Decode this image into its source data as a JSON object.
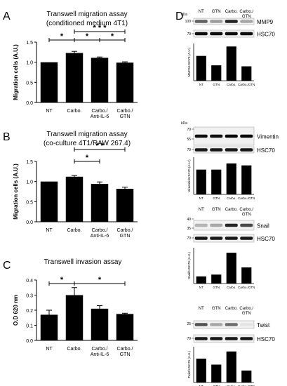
{
  "panels": {
    "A": {
      "letter": "A",
      "title1": "Transwell migration assay",
      "title2": "(conditioned medium 4T1)"
    },
    "B": {
      "letter": "B",
      "title1": "Transwell migration assay",
      "title2": "(co-culture 4T1/RAW 267.4)"
    },
    "C": {
      "letter": "C",
      "title1": "Transwell invasion assay"
    },
    "D": {
      "letter": "D"
    }
  },
  "significance": {
    "one": "*",
    "two": "* *",
    "three": "* * *"
  },
  "blots": {
    "col_labels": [
      "NT",
      "GTN",
      "Carbo.",
      "Carbo./\nGTN"
    ],
    "kda_unit": "kDa",
    "bands": {
      "mmp9": "MMP9",
      "hsc70": "HSC70",
      "vimentin": "Vimentin",
      "snail": "Snail",
      "twist": "Twist"
    },
    "markers": {
      "mmp9": [
        "100",
        "70"
      ],
      "vimentin": [
        "70",
        "55",
        "70"
      ],
      "snail": [
        "40",
        "35",
        "70"
      ],
      "twist": [
        "25",
        "70"
      ]
    },
    "small_cat_labels": [
      "NT",
      "GTN",
      "Carbo.",
      "Carbo./GTN"
    ]
  },
  "chart_data": [
    {
      "type": "bar",
      "panel": "A",
      "title": "Transwell migration assay (conditioned medium 4T1)",
      "categories": [
        "NT",
        "Carbo.",
        "Carbo./\nAnti-IL-6",
        "Carbo./\nGTN"
      ],
      "values": [
        1.0,
        1.23,
        1.11,
        0.99
      ],
      "errors": [
        0.0,
        0.04,
        0.02,
        0.02
      ],
      "ylabel": "Migration cells (A.U.)",
      "ylim": [
        0,
        1.5
      ],
      "yticks": [
        "0.0",
        "0.5",
        "1.0",
        "1.5"
      ],
      "significance": [
        {
          "from": 0,
          "to": 1,
          "label": "*"
        },
        {
          "from": 1,
          "to": 3,
          "label": "* * *"
        },
        {
          "from": 1,
          "to": 2,
          "label": "*"
        },
        {
          "from": 2,
          "to": 3,
          "label": "*"
        }
      ]
    },
    {
      "type": "bar",
      "panel": "B",
      "title": "Transwell migration assay (co-culture 4T1/RAW 267.4)",
      "categories": [
        "NT",
        "Carbo.",
        "Carbo./\nAnti-IL-6",
        "Carbo./\nGTN"
      ],
      "values": [
        1.0,
        1.12,
        0.94,
        0.82
      ],
      "errors": [
        0.0,
        0.03,
        0.05,
        0.04
      ],
      "ylabel": "Migration cells (A.U.)",
      "ylim": [
        0,
        1.5
      ],
      "yticks": [
        "0.0",
        "0.5",
        "1.0",
        "1.5"
      ],
      "significance": [
        {
          "from": 1,
          "to": 3,
          "label": "* *"
        },
        {
          "from": 1,
          "to": 2,
          "label": "*"
        }
      ]
    },
    {
      "type": "bar",
      "panel": "C",
      "title": "Transwell invasion assay",
      "categories": [
        "NT",
        "Carbo.",
        "Carbo./\nAnti-IL-6",
        "Carbo./\nGTN"
      ],
      "values": [
        0.17,
        0.3,
        0.21,
        0.175
      ],
      "errors": [
        0.03,
        0.05,
        0.02,
        0.005
      ],
      "ylabel": "O.D 620 nm",
      "ylim": [
        0,
        0.4
      ],
      "yticks": [
        "0.0",
        "0.1",
        "0.2",
        "0.3",
        "0.4"
      ],
      "significance": [
        {
          "from": 0,
          "to": 1,
          "label": "*"
        },
        {
          "from": 1,
          "to": 3,
          "label": "*"
        }
      ]
    },
    {
      "type": "bar",
      "panel": "D-MMP9",
      "categories": [
        "NT",
        "GTN",
        "Carbo.",
        "Carbo./GTN"
      ],
      "values": [
        1.0,
        0.62,
        1.38,
        0.58
      ],
      "ylabel": "MMP9/HSC70 (A.U.)"
    },
    {
      "type": "bar",
      "panel": "D-Vimentin",
      "categories": [
        "NT",
        "GTN",
        "Carbo.",
        "Carbo./GTN"
      ],
      "values": [
        1.0,
        1.0,
        1.25,
        1.17
      ],
      "ylabel": "Vimentin/HSC70 (A.U.)"
    },
    {
      "type": "bar",
      "panel": "D-Snail",
      "categories": [
        "NT",
        "GTN",
        "Carbo.",
        "Carbo./GTN"
      ],
      "values": [
        1.0,
        1.25,
        4.3,
        2.25
      ],
      "ylabel": "Snail/HSC70 (A.U.)"
    },
    {
      "type": "bar",
      "panel": "D-Twist",
      "categories": [
        "NT",
        "GTN",
        "Carbo.",
        "Carbo./GTN"
      ],
      "values": [
        1.0,
        0.75,
        1.3,
        0.5
      ],
      "ylabel": "Twist/HSC70 (A.U.)"
    }
  ]
}
